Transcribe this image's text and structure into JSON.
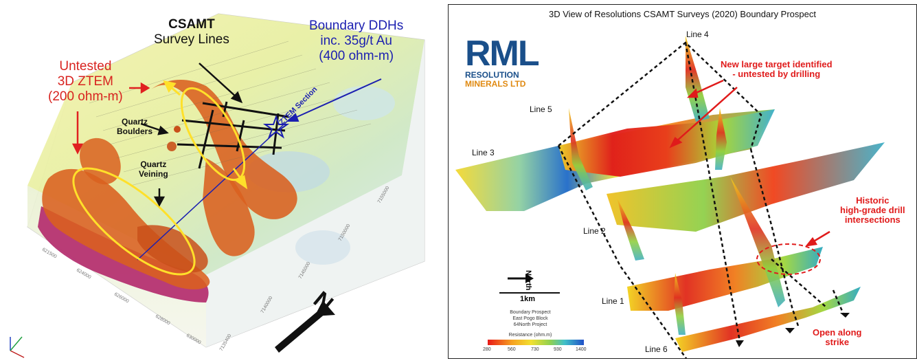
{
  "left": {
    "labels": {
      "csamt": "CSAMT",
      "survey_lines": "Survey Lines",
      "untested_1": "Untested",
      "untested_2": "3D ZTEM",
      "untested_3": "(200 ohm-m)",
      "boundary_1": "Boundary DDHs",
      "boundary_2": "inc. 35g/t Au",
      "boundary_3": "(400 ohm-m)",
      "quartz_boulders_1": "Quartz",
      "quartz_boulders_2": "Boulders",
      "quartz_veining_1": "Quartz",
      "quartz_veining_2": "Veining",
      "ztem_section": "ZTEM Section",
      "north": "N"
    },
    "axis_ticks_bottom": [
      "621500",
      "624000",
      "626000",
      "628000",
      "630000"
    ],
    "axis_ticks_right": [
      "7135400",
      "7140000",
      "7145000",
      "7150000",
      "7155000"
    ],
    "colors": {
      "orange_body": "#d9601f",
      "magenta": "#b3286a",
      "yellow_ellipse": "#ffe02a",
      "arrow_red": "#e02020",
      "arrow_blue": "#1b1fb0"
    }
  },
  "right": {
    "title": "3D View of Resolutions CSAMT Surveys (2020) Boundary Prospect",
    "logo": {
      "letters": "RML",
      "line1": "RESOLUTION",
      "line2": "MINERALS LTD"
    },
    "lines": {
      "line1": "Line 1",
      "line2": "Line 2",
      "line3": "Line 3",
      "line4": "Line 4",
      "line5": "Line 5",
      "line6": "Line 6"
    },
    "callouts": {
      "new_target_1": "New large target identified",
      "new_target_2": "- untested by drilling",
      "historic_1": "Historic",
      "historic_2": "high-grade drill",
      "historic_3": "intersections",
      "open_1": "Open along",
      "open_2": "strike"
    },
    "legend": {
      "north": "North",
      "scale": "1km",
      "project_1": "Boundary Prospect",
      "project_2": "East Pogo Block",
      "project_3": "64North Project",
      "resistance_title": "Resistance (ohm.m)",
      "ticks": [
        "280",
        "560",
        "730",
        "930",
        "1400"
      ]
    }
  }
}
